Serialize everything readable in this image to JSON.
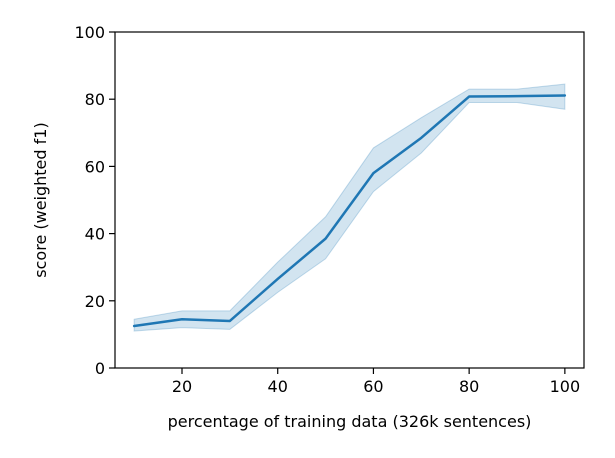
{
  "chart_data": {
    "type": "line",
    "xlabel": "percentage of training data (326k sentences)",
    "ylabel": "score (weighted f1)",
    "xlim": [
      6,
      104
    ],
    "ylim": [
      0,
      100
    ],
    "xticks": [
      20,
      40,
      60,
      80,
      100
    ],
    "yticks": [
      0,
      20,
      40,
      60,
      80,
      100
    ],
    "grid": false,
    "series": [
      {
        "x": [
          10,
          20,
          30,
          40,
          50,
          60,
          70,
          80,
          90,
          100
        ],
        "y": [
          12.5,
          14.5,
          14.0,
          26.5,
          38.5,
          58.0,
          68.5,
          80.8,
          80.9,
          81.1
        ],
        "lower": [
          11.0,
          12.0,
          11.5,
          22.5,
          32.5,
          52.5,
          64.0,
          79.0,
          79.0,
          77.0
        ],
        "upper": [
          14.5,
          17.0,
          17.0,
          31.5,
          45.0,
          65.5,
          74.5,
          83.0,
          83.0,
          84.5
        ],
        "color": "#1f77b4",
        "band_color": "#1f77b4"
      }
    ]
  }
}
